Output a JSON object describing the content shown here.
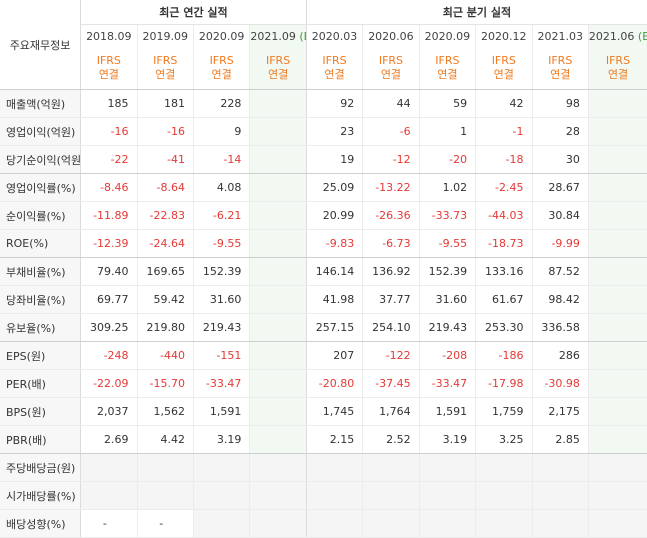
{
  "header": {
    "corner": "주요재무정보",
    "annual_title": "최근 연간 실적",
    "quarter_title": "최근 분기 실적",
    "periods": [
      {
        "label": "2018.09",
        "est": ""
      },
      {
        "label": "2019.09",
        "est": ""
      },
      {
        "label": "2020.09",
        "est": ""
      },
      {
        "label": "2021.09",
        "est": "(E)"
      },
      {
        "label": "2020.03",
        "est": ""
      },
      {
        "label": "2020.06",
        "est": ""
      },
      {
        "label": "2020.09",
        "est": ""
      },
      {
        "label": "2020.12",
        "est": ""
      },
      {
        "label": "2021.03",
        "est": ""
      },
      {
        "label": "2021.06",
        "est": "(E)"
      }
    ],
    "ifrs_top": "IFRS",
    "ifrs_bottom": "연결"
  },
  "rows": [
    {
      "label": "매출액(억원)",
      "values": [
        "185",
        "181",
        "228",
        "",
        "92",
        "44",
        "59",
        "42",
        "98",
        ""
      ]
    },
    {
      "label": "영업이익(억원)",
      "values": [
        "-16",
        "-16",
        "9",
        "",
        "23",
        "-6",
        "1",
        "-1",
        "28",
        ""
      ]
    },
    {
      "label": "당기순이익(억원)",
      "values": [
        "-22",
        "-41",
        "-14",
        "",
        "19",
        "-12",
        "-20",
        "-18",
        "30",
        ""
      ]
    },
    {
      "label": "영업이익률(%)",
      "values": [
        "-8.46",
        "-8.64",
        "4.08",
        "",
        "25.09",
        "-13.22",
        "1.02",
        "-2.45",
        "28.67",
        ""
      ]
    },
    {
      "label": "순이익률(%)",
      "values": [
        "-11.89",
        "-22.83",
        "-6.21",
        "",
        "20.99",
        "-26.36",
        "-33.73",
        "-44.03",
        "30.84",
        ""
      ]
    },
    {
      "label": "ROE(%)",
      "values": [
        "-12.39",
        "-24.64",
        "-9.55",
        "",
        "-9.83",
        "-6.73",
        "-9.55",
        "-18.73",
        "-9.99",
        ""
      ]
    },
    {
      "label": "부채비율(%)",
      "values": [
        "79.40",
        "169.65",
        "152.39",
        "",
        "146.14",
        "136.92",
        "152.39",
        "133.16",
        "87.52",
        ""
      ]
    },
    {
      "label": "당좌비율(%)",
      "values": [
        "69.77",
        "59.42",
        "31.60",
        "",
        "41.98",
        "37.77",
        "31.60",
        "61.67",
        "98.42",
        ""
      ]
    },
    {
      "label": "유보율(%)",
      "values": [
        "309.25",
        "219.80",
        "219.43",
        "",
        "257.15",
        "254.10",
        "219.43",
        "253.30",
        "336.58",
        ""
      ]
    },
    {
      "label": "EPS(원)",
      "values": [
        "-248",
        "-440",
        "-151",
        "",
        "207",
        "-122",
        "-208",
        "-186",
        "286",
        ""
      ]
    },
    {
      "label": "PER(배)",
      "values": [
        "-22.09",
        "-15.70",
        "-33.47",
        "",
        "-20.80",
        "-37.45",
        "-33.47",
        "-17.98",
        "-30.98",
        ""
      ]
    },
    {
      "label": "BPS(원)",
      "values": [
        "2,037",
        "1,562",
        "1,591",
        "",
        "1,745",
        "1,764",
        "1,591",
        "1,759",
        "2,175",
        ""
      ]
    },
    {
      "label": "PBR(배)",
      "values": [
        "2.69",
        "4.42",
        "3.19",
        "",
        "2.15",
        "2.52",
        "3.19",
        "3.25",
        "2.85",
        ""
      ]
    },
    {
      "label": "주당배당금(원)",
      "values": [
        "",
        "",
        "",
        "",
        "",
        "",
        "",
        "",
        "",
        ""
      ]
    },
    {
      "label": "시가배당률(%)",
      "values": [
        "",
        "",
        "",
        "",
        "",
        "",
        "",
        "",
        "",
        ""
      ]
    },
    {
      "label": "배당성향(%)",
      "values": [
        "-",
        "-",
        "",
        "",
        "",
        "",
        "",
        "",
        "",
        ""
      ]
    }
  ],
  "colors": {
    "negative": "#e53935",
    "ifrs": "#f07a1e",
    "estimate": "#3f9a3f",
    "estimate_bg": "#f2f9f2",
    "label_bg": "#f7f7f7"
  }
}
